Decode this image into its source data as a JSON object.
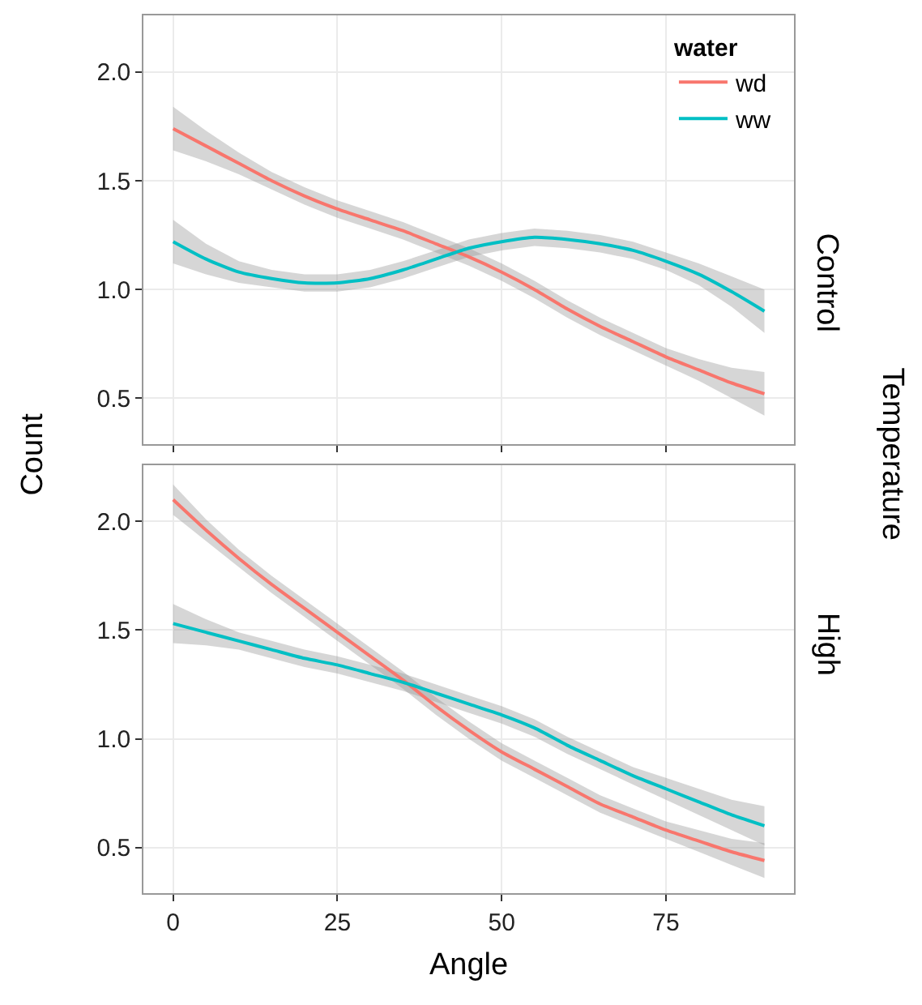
{
  "chart_data": [
    {
      "type": "line",
      "ylabel": "Count",
      "legend_title": "water",
      "legend": "top right",
      "grid": true,
      "tick_labels": "y",
      "annotations": [
        "Control",
        "Temperature"
      ],
      "x": [
        0,
        5,
        10,
        15,
        20,
        25,
        30,
        35,
        40,
        45,
        50,
        55,
        60,
        65,
        70,
        75,
        80,
        85,
        90
      ],
      "xlim": [
        -4.5,
        94.5
      ],
      "xticks": [
        0,
        25,
        50,
        75
      ],
      "ylim": [
        0.29,
        2.26
      ],
      "yticks": [
        {
          "value": 0.5,
          "label": "0.5"
        },
        {
          "value": 1.0,
          "label": "1.0"
        },
        {
          "value": 1.5,
          "label": "1.5"
        },
        {
          "value": 2.0,
          "label": "2.0"
        }
      ],
      "series": [
        {
          "name": "wd",
          "color": "#f8766d",
          "values": [
            1.74,
            1.66,
            1.58,
            1.5,
            1.43,
            1.37,
            1.32,
            1.27,
            1.21,
            1.15,
            1.08,
            1.0,
            0.91,
            0.83,
            0.76,
            0.69,
            0.63,
            0.57,
            0.52
          ],
          "lower": [
            1.64,
            1.59,
            1.53,
            1.46,
            1.39,
            1.33,
            1.28,
            1.23,
            1.17,
            1.11,
            1.04,
            0.96,
            0.87,
            0.79,
            0.72,
            0.65,
            0.58,
            0.5,
            0.42
          ],
          "upper": [
            1.84,
            1.73,
            1.63,
            1.54,
            1.47,
            1.41,
            1.36,
            1.31,
            1.25,
            1.19,
            1.12,
            1.04,
            0.95,
            0.87,
            0.8,
            0.73,
            0.68,
            0.64,
            0.62
          ]
        },
        {
          "name": "ww",
          "color": "#00bfc4",
          "values": [
            1.22,
            1.14,
            1.08,
            1.05,
            1.03,
            1.03,
            1.05,
            1.09,
            1.14,
            1.19,
            1.22,
            1.24,
            1.23,
            1.21,
            1.18,
            1.13,
            1.07,
            0.99,
            0.9
          ],
          "lower": [
            1.12,
            1.07,
            1.03,
            1.01,
            0.99,
            0.99,
            1.01,
            1.05,
            1.1,
            1.15,
            1.18,
            1.2,
            1.19,
            1.17,
            1.14,
            1.09,
            1.02,
            0.92,
            0.8
          ],
          "upper": [
            1.32,
            1.21,
            1.13,
            1.09,
            1.07,
            1.07,
            1.09,
            1.13,
            1.18,
            1.23,
            1.26,
            1.28,
            1.27,
            1.25,
            1.22,
            1.17,
            1.12,
            1.06,
            1.0
          ]
        }
      ]
    },
    {
      "type": "line",
      "xlabel": "Angle",
      "grid": true,
      "annotations": [
        "High"
      ],
      "x": [
        0,
        5,
        10,
        15,
        20,
        25,
        30,
        35,
        40,
        45,
        50,
        55,
        60,
        65,
        70,
        75,
        80,
        85,
        90
      ],
      "xlim": [
        -4.5,
        94.5
      ],
      "xticks": [
        0,
        25,
        50,
        75
      ],
      "ylim": [
        0.29,
        2.26
      ],
      "yticks": [
        {
          "value": 0.5,
          "label": "0.5"
        },
        {
          "value": 1.0,
          "label": "1.0"
        },
        {
          "value": 1.5,
          "label": "1.5"
        },
        {
          "value": 2.0,
          "label": "2.0"
        }
      ],
      "series": [
        {
          "color": "#f8766d",
          "values": [
            2.1,
            1.96,
            1.83,
            1.71,
            1.6,
            1.49,
            1.38,
            1.27,
            1.15,
            1.04,
            0.94,
            0.86,
            0.78,
            0.7,
            0.64,
            0.58,
            0.53,
            0.48,
            0.44
          ],
          "lower": [
            2.03,
            1.91,
            1.79,
            1.67,
            1.56,
            1.45,
            1.34,
            1.23,
            1.11,
            1.0,
            0.9,
            0.82,
            0.74,
            0.66,
            0.6,
            0.54,
            0.48,
            0.42,
            0.36
          ],
          "upper": [
            2.17,
            2.01,
            1.87,
            1.75,
            1.64,
            1.53,
            1.42,
            1.31,
            1.19,
            1.08,
            0.98,
            0.9,
            0.82,
            0.74,
            0.68,
            0.62,
            0.58,
            0.54,
            0.52
          ]
        },
        {
          "color": "#00bfc4",
          "values": [
            1.53,
            1.49,
            1.45,
            1.41,
            1.37,
            1.34,
            1.3,
            1.26,
            1.21,
            1.16,
            1.11,
            1.05,
            0.97,
            0.9,
            0.83,
            0.77,
            0.71,
            0.65,
            0.6
          ],
          "lower": [
            1.44,
            1.43,
            1.41,
            1.37,
            1.33,
            1.3,
            1.26,
            1.22,
            1.17,
            1.12,
            1.07,
            1.01,
            0.93,
            0.86,
            0.79,
            0.72,
            0.65,
            0.58,
            0.51
          ],
          "upper": [
            1.62,
            1.55,
            1.49,
            1.45,
            1.41,
            1.38,
            1.34,
            1.3,
            1.25,
            1.2,
            1.15,
            1.09,
            1.01,
            0.94,
            0.87,
            0.82,
            0.77,
            0.72,
            0.69
          ]
        }
      ]
    }
  ]
}
